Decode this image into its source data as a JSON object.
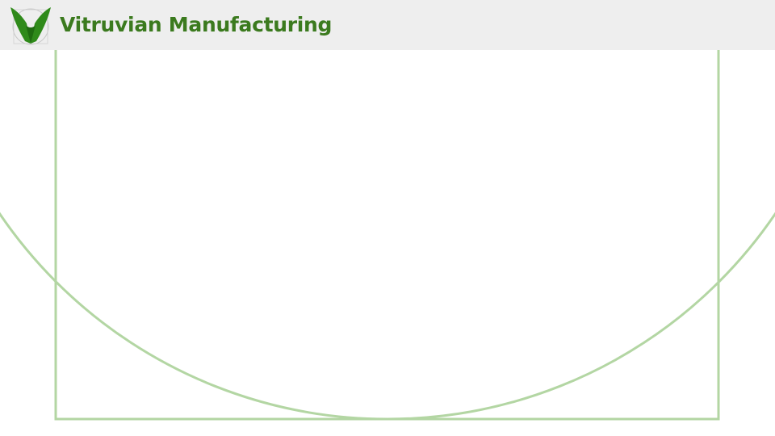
{
  "header": {
    "title": "Vitruvian Manufacturing",
    "logo_icon": "vitruvian-v-leaf-logo",
    "background_color": "#eeeeee"
  },
  "colors": {
    "brand_green": "#3b7a1e",
    "logo_green": "#2f8a1a",
    "frame_green": "#b3d6a3"
  }
}
